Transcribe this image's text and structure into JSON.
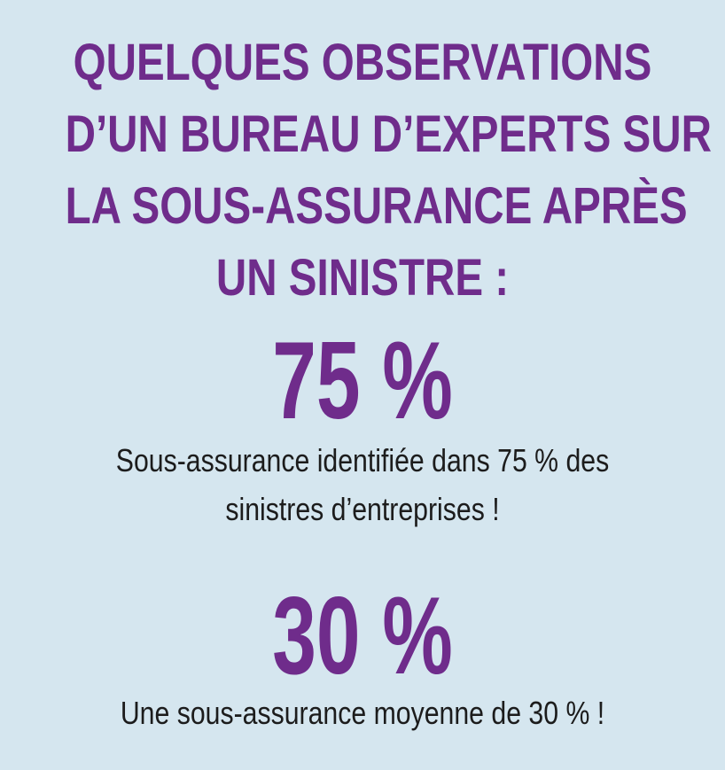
{
  "heading": {
    "lines": [
      "QUELQUES OBSERVATIONS",
      "D’UN BUREAU D’EXPERTS SUR",
      "LA SOUS-ASSURANCE APRÈS",
      "UN SINISTRE :"
    ]
  },
  "stats": [
    {
      "value": "75 %",
      "description_lines": [
        "Sous-assurance identifiée dans 75 % des",
        "sinistres d’entreprises !"
      ]
    },
    {
      "value": "30 %",
      "description_lines": [
        "Une sous-assurance moyenne de 30 % !"
      ]
    }
  ],
  "colors": {
    "background": "#d5e6ef",
    "accent": "#6f2c8b",
    "text": "#1c1c1c"
  }
}
